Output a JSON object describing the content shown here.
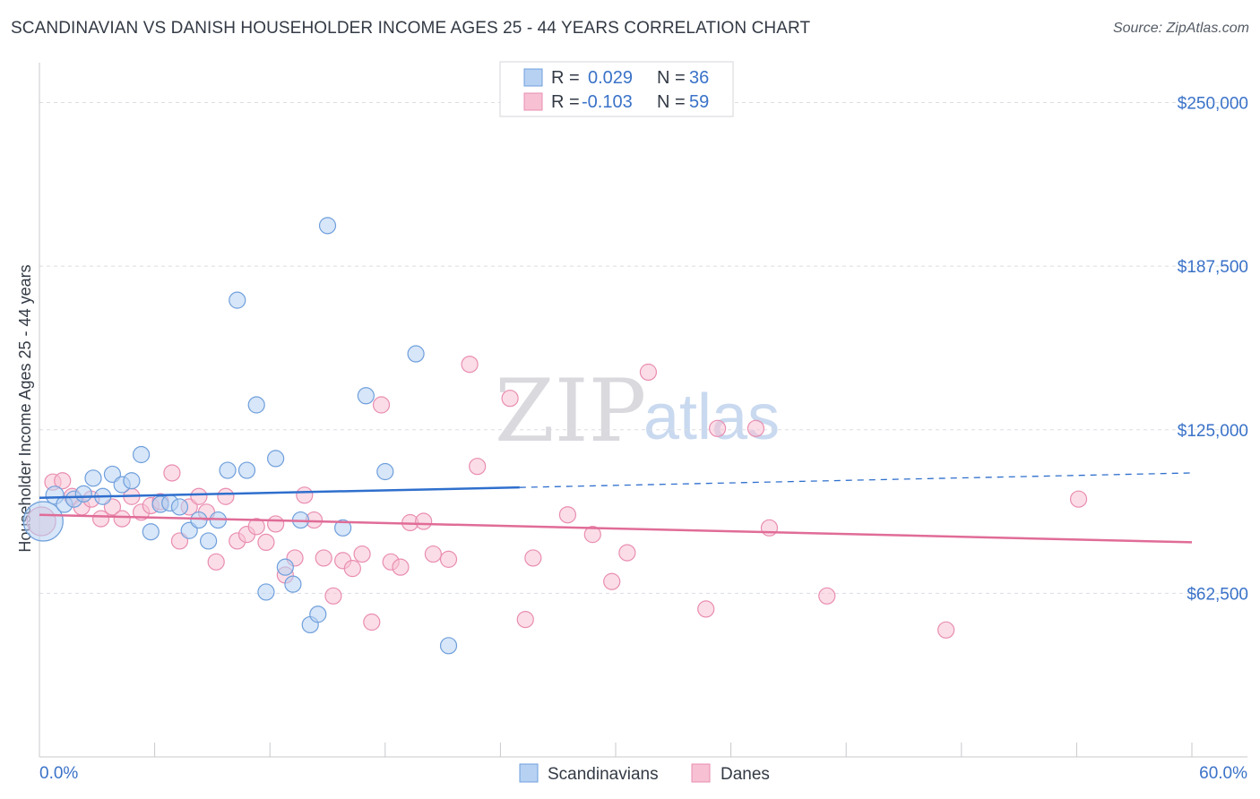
{
  "title": "SCANDINAVIAN VS DANISH HOUSEHOLDER INCOME AGES 25 - 44 YEARS CORRELATION CHART",
  "source": "Source: ZipAtlas.com",
  "watermark": {
    "zip": "ZIP",
    "atlas": "atlas"
  },
  "colors": {
    "blue_fill": "#b7d1f3",
    "blue_stroke": "#6f9fdc",
    "blue_line": "#2f6fcd",
    "pink_fill": "#f7c1d3",
    "pink_stroke": "#e98db0",
    "pink_line": "#e06c97",
    "grid": "#dcdde2",
    "axis_text": "#3a72c8"
  },
  "legend": {
    "rows": [
      {
        "r_label": "R =",
        "r_value": "0.029",
        "n_label": "N =",
        "n_value": "36"
      },
      {
        "r_label": "R =",
        "r_value": "-0.103",
        "n_label": "N =",
        "n_value": "59"
      }
    ]
  },
  "bottom_legend": [
    "Scandinavians",
    "Danes"
  ],
  "chart_data": {
    "type": "scatter",
    "title": "SCANDINAVIAN VS DANISH HOUSEHOLDER INCOME AGES 25 - 44 YEARS CORRELATION CHART",
    "xlabel": "",
    "ylabel": "Householder Income Ages 25 - 44 years",
    "xlim": [
      0,
      60
    ],
    "ylim": [
      0,
      262500
    ],
    "x_tick_labels": [
      "0.0%",
      "60.0%"
    ],
    "y_ticks": [
      62500,
      125000,
      187500,
      250000
    ],
    "y_tick_labels": [
      "$62,500",
      "$125,000",
      "$187,500",
      "$250,000"
    ],
    "series": [
      {
        "name": "Scandinavians",
        "r": 0.029,
        "n": 36,
        "trend": {
          "x0": 0,
          "y0": 99000,
          "x1": 60,
          "y1": 108500,
          "solid_until": 25
        },
        "points": [
          [
            0.2,
            90000,
            22
          ],
          [
            0.8,
            100000,
            10
          ],
          [
            1.3,
            96500,
            9
          ],
          [
            1.8,
            98500,
            9
          ],
          [
            2.3,
            100500,
            9
          ],
          [
            2.8,
            106500,
            9
          ],
          [
            3.3,
            99500,
            9
          ],
          [
            3.8,
            108000,
            9
          ],
          [
            4.3,
            104000,
            9
          ],
          [
            4.8,
            105500,
            9
          ],
          [
            5.3,
            115500,
            9
          ],
          [
            5.8,
            86000,
            9
          ],
          [
            6.3,
            96500,
            9
          ],
          [
            6.8,
            97000,
            9
          ],
          [
            7.3,
            95500,
            9
          ],
          [
            7.8,
            86500,
            9
          ],
          [
            8.3,
            90500,
            9
          ],
          [
            8.8,
            82500,
            9
          ],
          [
            9.3,
            90500,
            9
          ],
          [
            9.8,
            109500,
            9
          ],
          [
            10.3,
            174500,
            9
          ],
          [
            10.8,
            109500,
            9
          ],
          [
            11.3,
            134500,
            9
          ],
          [
            11.8,
            63000,
            9
          ],
          [
            12.3,
            114000,
            9
          ],
          [
            12.8,
            72500,
            9
          ],
          [
            13.2,
            66000,
            9
          ],
          [
            13.6,
            90500,
            9
          ],
          [
            14.1,
            50500,
            9
          ],
          [
            14.5,
            54500,
            9
          ],
          [
            15.0,
            203000,
            9
          ],
          [
            15.8,
            87500,
            9
          ],
          [
            17.0,
            138000,
            9
          ],
          [
            18.0,
            109000,
            9
          ],
          [
            19.6,
            154000,
            9
          ],
          [
            21.3,
            42500,
            9
          ]
        ]
      },
      {
        "name": "Danes",
        "r": -0.103,
        "n": 59,
        "trend": {
          "x0": 0,
          "y0": 92500,
          "x1": 60,
          "y1": 82000,
          "solid_until": 60
        },
        "points": [
          [
            0.1,
            90000,
            16
          ],
          [
            0.7,
            105000,
            9
          ],
          [
            1.2,
            105500,
            9
          ],
          [
            1.7,
            99500,
            9
          ],
          [
            2.2,
            95500,
            9
          ],
          [
            2.7,
            98500,
            9
          ],
          [
            3.2,
            91000,
            9
          ],
          [
            3.8,
            95500,
            9
          ],
          [
            4.3,
            91000,
            9
          ],
          [
            4.8,
            99500,
            9
          ],
          [
            5.3,
            93500,
            9
          ],
          [
            5.8,
            96000,
            9
          ],
          [
            6.3,
            97500,
            9
          ],
          [
            6.9,
            108500,
            9
          ],
          [
            7.3,
            82500,
            9
          ],
          [
            7.8,
            95500,
            9
          ],
          [
            8.3,
            99500,
            9
          ],
          [
            8.7,
            93500,
            9
          ],
          [
            9.2,
            74500,
            9
          ],
          [
            9.7,
            99500,
            9
          ],
          [
            10.3,
            82500,
            9
          ],
          [
            10.8,
            85000,
            9
          ],
          [
            11.3,
            88000,
            9
          ],
          [
            11.8,
            82000,
            9
          ],
          [
            12.3,
            89000,
            9
          ],
          [
            12.8,
            69500,
            9
          ],
          [
            13.3,
            76000,
            9
          ],
          [
            13.8,
            100000,
            9
          ],
          [
            14.3,
            90500,
            9
          ],
          [
            14.8,
            76000,
            9
          ],
          [
            15.3,
            61500,
            9
          ],
          [
            15.8,
            75000,
            9
          ],
          [
            16.3,
            72000,
            9
          ],
          [
            16.8,
            77500,
            9
          ],
          [
            17.3,
            51500,
            9
          ],
          [
            17.8,
            134500,
            9
          ],
          [
            18.3,
            74500,
            9
          ],
          [
            18.8,
            72500,
            9
          ],
          [
            19.3,
            89500,
            9
          ],
          [
            20.0,
            90000,
            9
          ],
          [
            20.5,
            77500,
            9
          ],
          [
            21.3,
            75500,
            9
          ],
          [
            22.4,
            150000,
            9
          ],
          [
            22.8,
            111000,
            9
          ],
          [
            24.5,
            137000,
            9
          ],
          [
            25.3,
            52500,
            9
          ],
          [
            25.7,
            76000,
            9
          ],
          [
            27.5,
            92500,
            9
          ],
          [
            28.8,
            85000,
            9
          ],
          [
            29.8,
            67000,
            9
          ],
          [
            30.6,
            78000,
            9
          ],
          [
            31.7,
            147000,
            9
          ],
          [
            34.7,
            56500,
            9
          ],
          [
            35.3,
            125500,
            9
          ],
          [
            37.3,
            125500,
            9
          ],
          [
            38.0,
            87500,
            9
          ],
          [
            41.0,
            61500,
            9
          ],
          [
            47.2,
            48500,
            9
          ],
          [
            54.1,
            98500,
            9
          ]
        ]
      }
    ]
  }
}
